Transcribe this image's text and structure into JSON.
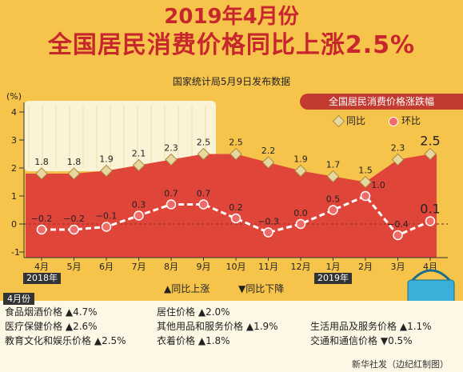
{
  "header": {
    "title_line1": "2019年4月份",
    "title_line2": "全国居民消费价格同比上涨2.5%",
    "subtitle": "国家统计局5月9日发布数据"
  },
  "legend": {
    "title": "全国居民消费价格涨跌幅",
    "yoy": "同比",
    "mom": "环比",
    "up": "▲同比上涨",
    "down": "▼同比下降"
  },
  "year_labels": {
    "y2018": "2018年",
    "y2019": "2019年"
  },
  "colors": {
    "background": "#f6c44b",
    "title": "#c6262c",
    "yoy_area": "#e0453a",
    "mom_line": "#ffffff",
    "mom_marker": "#f06b67",
    "yoy_marker": "#e8d7a0"
  },
  "chart_data": {
    "type": "line",
    "y_unit": "(%)",
    "ylim": [
      -1,
      4
    ],
    "yticks": [
      "4",
      "3",
      "2",
      "1",
      "0",
      "-1"
    ],
    "categories": [
      "4月",
      "5月",
      "6月",
      "7月",
      "8月",
      "9月",
      "10月",
      "11月",
      "12月",
      "1月",
      "2月",
      "3月",
      "4月"
    ],
    "series": [
      {
        "name": "同比",
        "values": [
          1.8,
          1.8,
          1.9,
          2.1,
          2.3,
          2.5,
          2.5,
          2.2,
          1.9,
          1.7,
          1.5,
          2.3,
          2.5
        ],
        "labels": [
          "1.8",
          "1.8",
          "1.9",
          "2.1",
          "2.3",
          "2.5",
          "2.5",
          "2.2",
          "1.9",
          "1.7",
          "1.5",
          "2.3",
          "2.5"
        ]
      },
      {
        "name": "环比",
        "values": [
          -0.2,
          -0.2,
          -0.1,
          0.3,
          0.7,
          0.7,
          0.2,
          -0.3,
          0.0,
          0.5,
          1.0,
          -0.4,
          0.1
        ],
        "labels": [
          "−0.2",
          "−0.2",
          "−0.1",
          "0.3",
          "0.7",
          "0.7",
          "0.2",
          "−0.3",
          "0.0",
          "0.5",
          "1.0",
          "−0.4",
          "0.1"
        ]
      }
    ]
  },
  "panel": {
    "month": "4月份",
    "items": [
      {
        "name": "食品烟酒价格",
        "change": "▲4.7%"
      },
      {
        "name": "医疗保健价格",
        "change": "▲2.6%"
      },
      {
        "name": "教育文化和娱乐价格",
        "change": "▲2.5%"
      },
      {
        "name": "居住价格",
        "change": "▲2.0%"
      },
      {
        "name": "其他用品和服务价格",
        "change": "▲1.9%"
      },
      {
        "name": "衣着价格",
        "change": "▲1.8%"
      },
      {
        "name": "生活用品及服务价格",
        "change": "▲1.1%"
      },
      {
        "name": "交通和通信价格",
        "change": "▼0.5%"
      }
    ],
    "credit": "新华社发（边纪红制图）"
  }
}
